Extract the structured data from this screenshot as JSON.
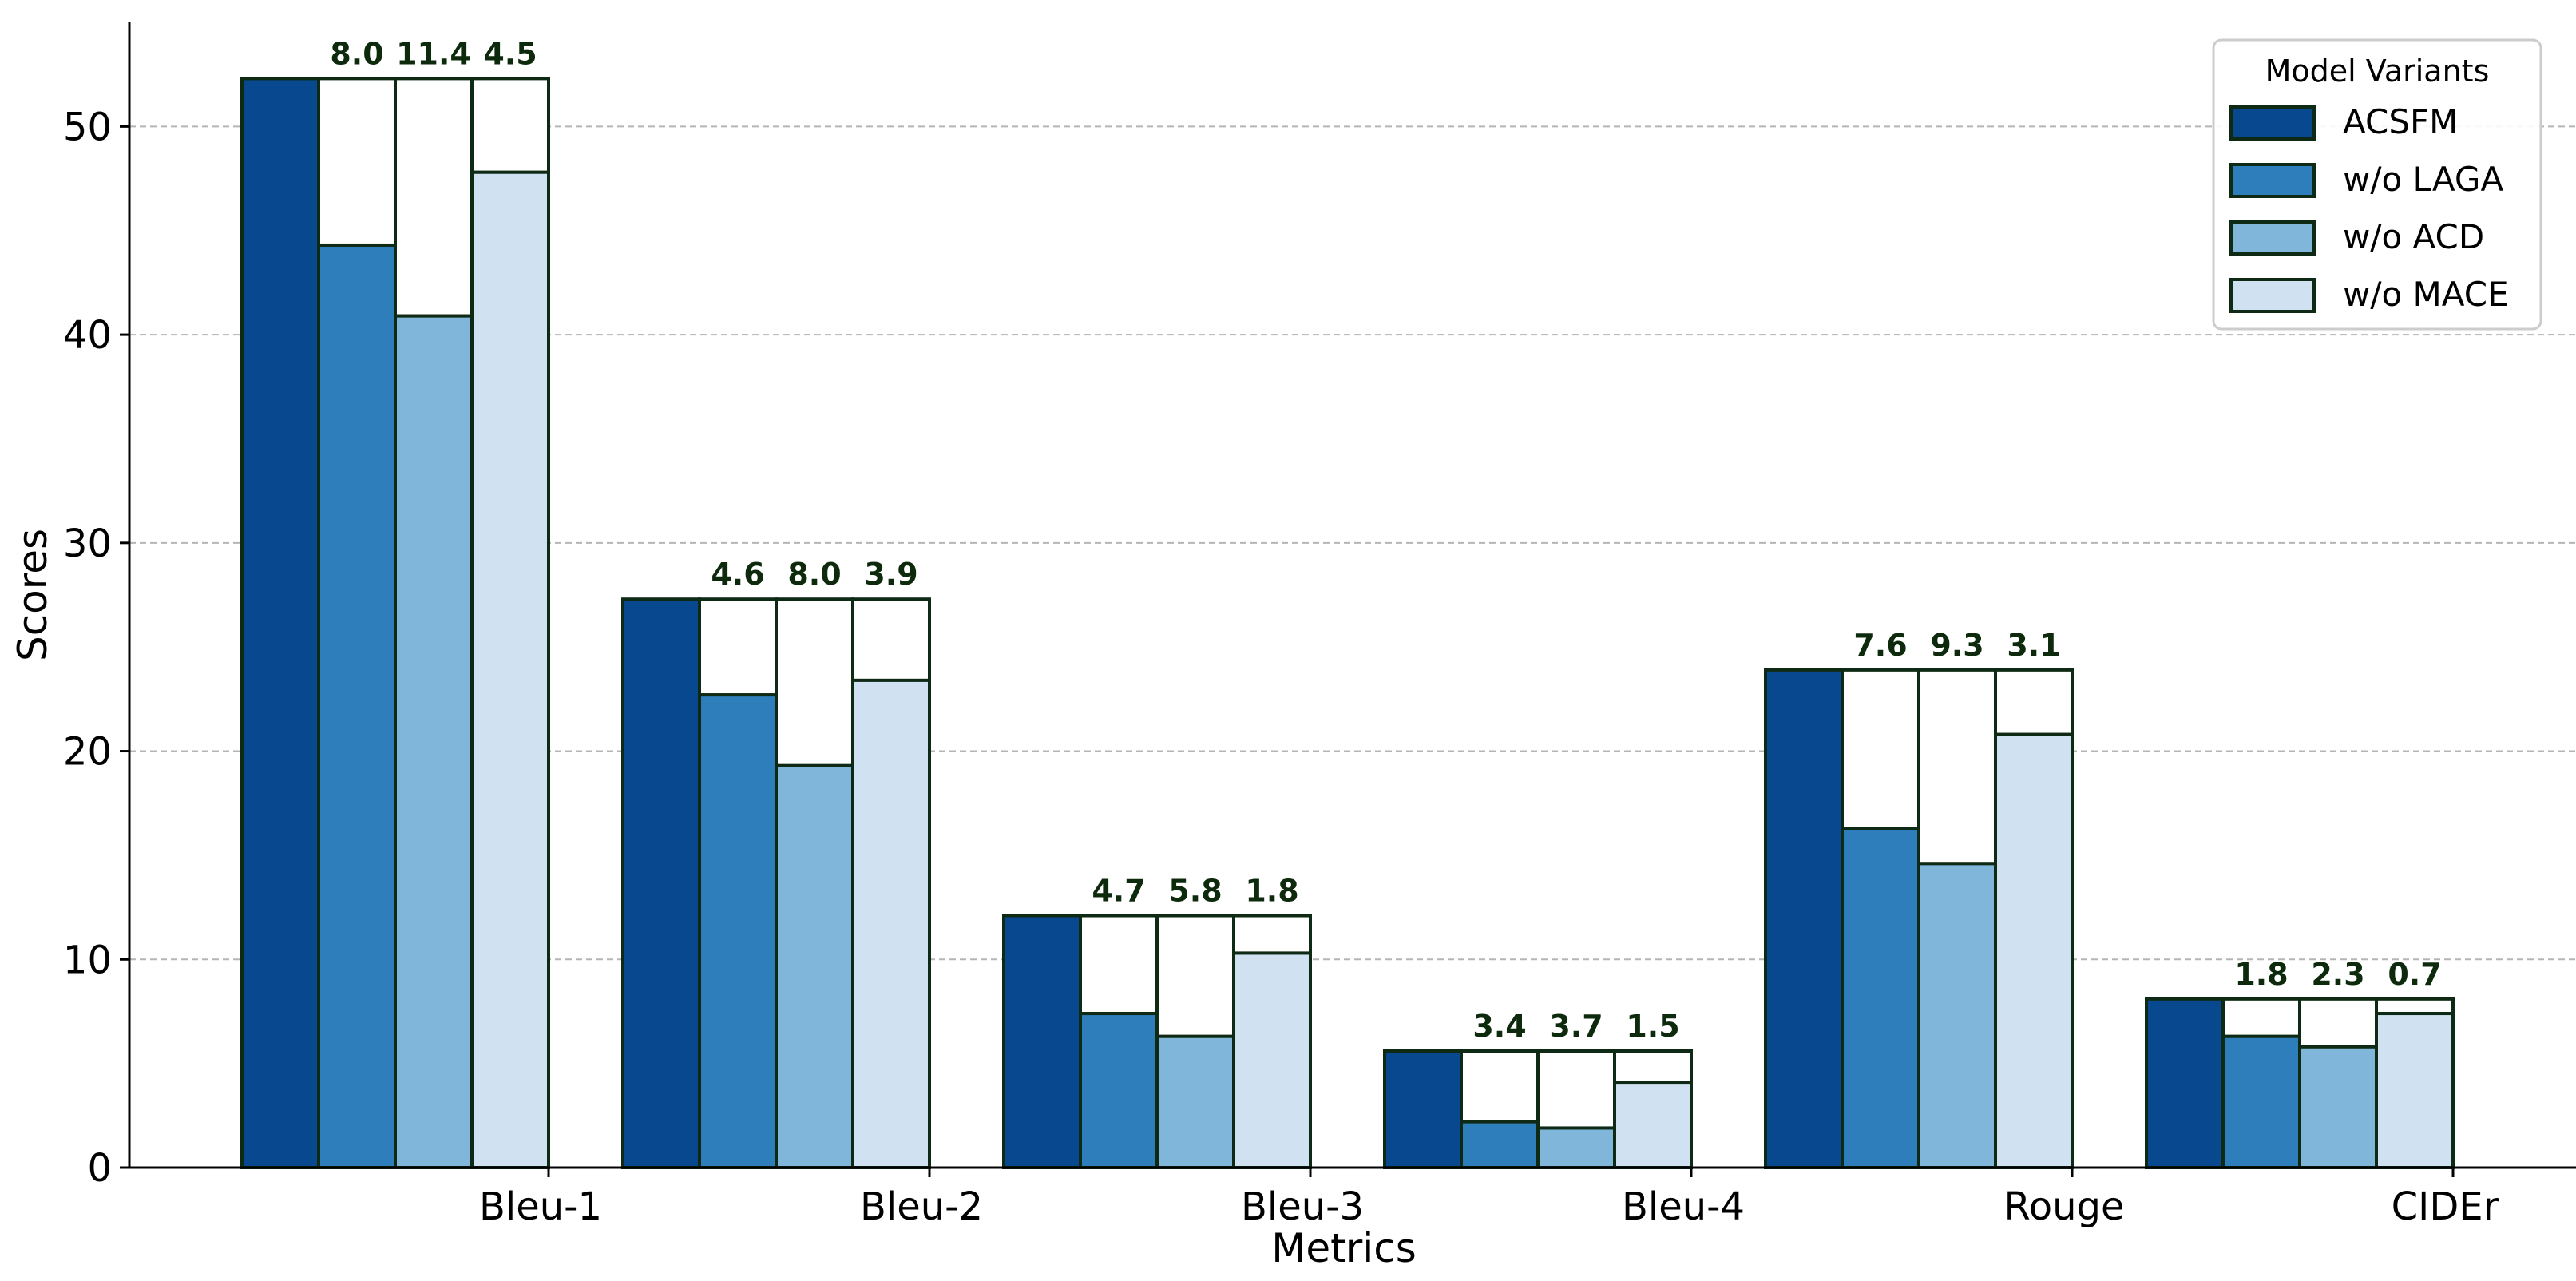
{
  "chart_data": {
    "type": "bar",
    "categories": [
      "Bleu-1",
      "Bleu-2",
      "Bleu-3",
      "Bleu-4",
      "Rouge",
      "CIDEr"
    ],
    "series": [
      {
        "name": "ACSFM",
        "values": [
          52.3,
          27.3,
          12.1,
          5.6,
          23.9,
          8.1
        ],
        "color": "#08488e"
      },
      {
        "name": "w/o LAGA",
        "values": [
          44.3,
          22.7,
          7.4,
          2.2,
          16.3,
          6.3
        ],
        "color": "#2e7ebc"
      },
      {
        "name": "w/o ACD",
        "values": [
          40.9,
          19.3,
          6.3,
          1.9,
          14.6,
          5.8
        ],
        "color": "#7fb6d9"
      },
      {
        "name": "w/o MACE",
        "values": [
          47.8,
          23.4,
          10.3,
          4.1,
          20.8,
          7.4
        ],
        "color": "#d0e1f1"
      }
    ],
    "gap_labels": [
      [
        "8.0",
        "11.4",
        "4.5"
      ],
      [
        "4.6",
        "8.0",
        "3.9"
      ],
      [
        "4.7",
        "5.8",
        "1.8"
      ],
      [
        "3.4",
        "3.7",
        "1.5"
      ],
      [
        "7.6",
        "9.3",
        "3.1"
      ],
      [
        "1.8",
        "2.3",
        "0.7"
      ]
    ],
    "xlabel": "Metrics",
    "ylabel": "Scores",
    "ylim": [
      0,
      55
    ],
    "yticks": [
      "0",
      "10",
      "20",
      "30",
      "40",
      "50"
    ],
    "grid": "horizontal dashed",
    "legend": {
      "title": "Model Variants",
      "placement": "top-right"
    },
    "edge_color": "#0f2a14"
  }
}
